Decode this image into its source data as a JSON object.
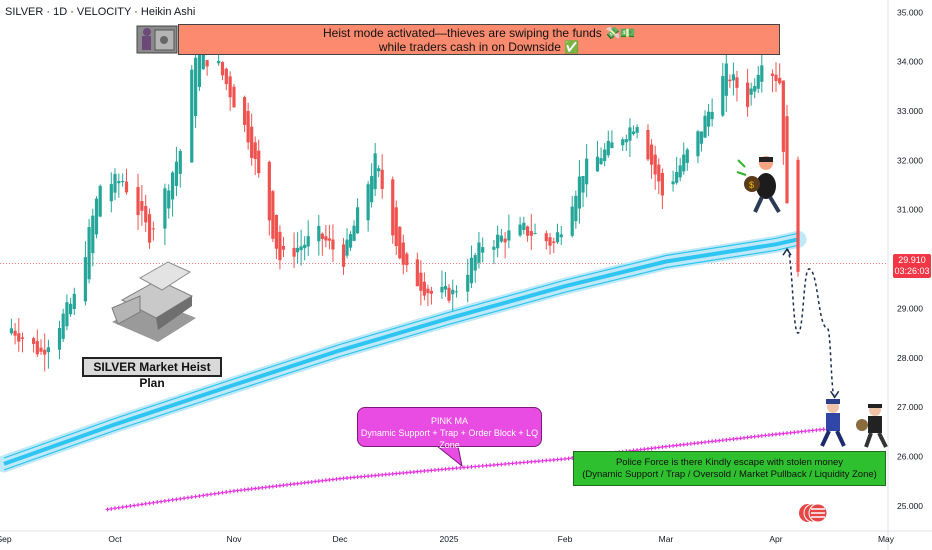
{
  "header": {
    "title": "SILVER · 1D · VELOCITY · Heikin Ashi"
  },
  "annotations": {
    "title_line1": "Heist mode activated—thieves are swiping the funds 💸💵",
    "title_line2": "while traders cash in on Downside ✅",
    "plan_label": "SILVER Market Heist Plan",
    "pink_title": "PINK MA",
    "pink_desc": "Dynamic Support + Trap + Order Block + LQ Zone",
    "police_line1": "Police Force is there Kindly escape with stolen money",
    "police_line2": "(Dynamic Support / Trap / Oversold / Market Pullback / Liquidity Zone)"
  },
  "price_tag": {
    "price": "29.910",
    "countdown": "03:26:03"
  },
  "colors": {
    "up": "#26a69a",
    "down": "#ef5350",
    "ma_blue": "#2ec5f2",
    "ma_pink": "#e535e0",
    "title_box": "#fb8a6e",
    "green_box": "#2fc02f"
  },
  "chart_data": {
    "type": "candlestick",
    "symbol": "SILVER",
    "interval": "1D",
    "style": "Heikin Ashi",
    "ylim": [
      24.55,
      35.25
    ],
    "y_ticks": [
      25.0,
      26.0,
      27.0,
      28.0,
      29.0,
      30.0,
      31.0,
      32.0,
      33.0,
      34.0,
      35.0
    ],
    "y_tick_labels": [
      "25.000",
      "26.000",
      "27.000",
      "28.000",
      "29.000",
      "30.000",
      "31.000",
      "32.000",
      "33.000",
      "34.000",
      "35.000"
    ],
    "x_ticks": [
      {
        "label": "Sep",
        "date": "2024-09-01"
      },
      {
        "label": "Oct",
        "date": "2024-10-01"
      },
      {
        "label": "Nov",
        "date": "2024-11-01"
      },
      {
        "label": "Dec",
        "date": "2024-12-01"
      },
      {
        "label": "2025",
        "date": "2025-01-01"
      },
      {
        "label": "Feb",
        "date": "2025-02-01"
      },
      {
        "label": "Mar",
        "date": "2025-03-01"
      },
      {
        "label": "Apr",
        "date": "2025-04-01"
      },
      {
        "label": "May",
        "date": "2025-05-01"
      }
    ],
    "last_price": 29.91,
    "series": [
      {
        "name": "Heikin Ashi",
        "points": [
          {
            "date": "2024-09-03",
            "close": 28.6
          },
          {
            "date": "2024-09-11",
            "close": 28.1
          },
          {
            "date": "2024-09-20",
            "close": 29.2
          },
          {
            "date": "2024-09-27",
            "close": 31.5
          },
          {
            "date": "2024-10-03",
            "close": 31.6
          },
          {
            "date": "2024-10-10",
            "close": 30.5
          },
          {
            "date": "2024-10-18",
            "close": 32.2
          },
          {
            "date": "2024-10-22",
            "close": 34.2
          },
          {
            "date": "2024-10-28",
            "close": 33.9
          },
          {
            "date": "2024-11-05",
            "close": 32.5
          },
          {
            "date": "2024-11-14",
            "close": 30.0
          },
          {
            "date": "2024-11-25",
            "close": 30.5
          },
          {
            "date": "2024-12-02",
            "close": 30.0
          },
          {
            "date": "2024-12-11",
            "close": 32.0
          },
          {
            "date": "2024-12-19",
            "close": 29.8
          },
          {
            "date": "2024-12-27",
            "close": 29.3
          },
          {
            "date": "2025-01-02",
            "close": 29.3
          },
          {
            "date": "2025-01-10",
            "close": 30.3
          },
          {
            "date": "2025-01-21",
            "close": 30.6
          },
          {
            "date": "2025-01-29",
            "close": 30.3
          },
          {
            "date": "2025-02-06",
            "close": 31.8
          },
          {
            "date": "2025-02-14",
            "close": 32.3
          },
          {
            "date": "2025-02-21",
            "close": 32.8
          },
          {
            "date": "2025-02-28",
            "close": 31.3
          },
          {
            "date": "2025-03-10",
            "close": 32.5
          },
          {
            "date": "2025-03-18",
            "close": 33.8
          },
          {
            "date": "2025-03-24",
            "close": 33.2
          },
          {
            "date": "2025-03-28",
            "close": 34.1
          },
          {
            "date": "2025-04-02",
            "close": 33.6
          },
          {
            "date": "2025-04-04",
            "close": 31.0
          },
          {
            "date": "2025-04-07",
            "close": 29.91
          }
        ]
      },
      {
        "name": "Blue MA",
        "points": [
          {
            "date": "2024-09-01",
            "value": 25.85
          },
          {
            "date": "2024-10-01",
            "value": 26.65
          },
          {
            "date": "2024-11-01",
            "value": 27.45
          },
          {
            "date": "2024-12-01",
            "value": 28.15
          },
          {
            "date": "2025-01-01",
            "value": 28.8
          },
          {
            "date": "2025-02-01",
            "value": 29.45
          },
          {
            "date": "2025-03-01",
            "value": 29.95
          },
          {
            "date": "2025-04-01",
            "value": 30.3
          },
          {
            "date": "2025-04-07",
            "value": 30.4
          }
        ]
      },
      {
        "name": "PINK MA",
        "points": [
          {
            "date": "2024-09-01",
            "value": 24.6
          },
          {
            "date": "2024-10-01",
            "value": 24.95
          },
          {
            "date": "2024-11-01",
            "value": 25.3
          },
          {
            "date": "2024-12-01",
            "value": 25.55
          },
          {
            "date": "2025-01-01",
            "value": 25.75
          },
          {
            "date": "2025-02-01",
            "value": 25.95
          },
          {
            "date": "2025-03-01",
            "value": 26.2
          },
          {
            "date": "2025-04-01",
            "value": 26.45
          },
          {
            "date": "2025-04-14",
            "value": 26.55
          }
        ]
      }
    ],
    "projection": [
      {
        "date": "2025-04-04",
        "value": 30.2
      },
      {
        "date": "2025-04-07",
        "value": 28.5
      },
      {
        "date": "2025-04-10",
        "value": 29.8
      },
      {
        "date": "2025-04-15",
        "value": 28.6
      },
      {
        "date": "2025-04-17",
        "value": 27.2
      }
    ],
    "annotations": [
      "Heist mode activated—thieves are swiping the funds",
      "SILVER Market Heist Plan",
      "PINK MA",
      "Police Force is there Kindly escape with stolen money"
    ]
  }
}
